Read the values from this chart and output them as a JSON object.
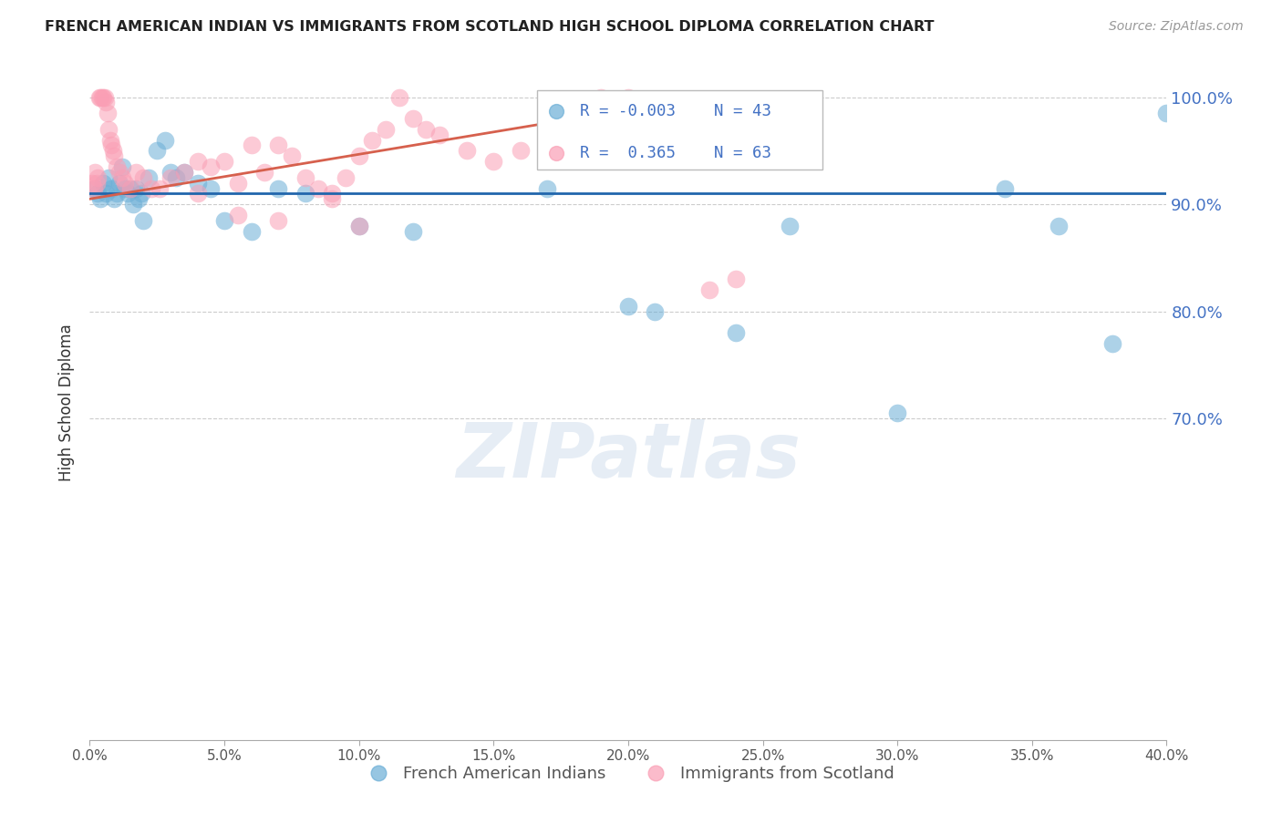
{
  "title": "FRENCH AMERICAN INDIAN VS IMMIGRANTS FROM SCOTLAND HIGH SCHOOL DIPLOMA CORRELATION CHART",
  "source": "Source: ZipAtlas.com",
  "ylabel": "High School Diploma",
  "watermark": "ZIPatlas",
  "blue_label": "French American Indians",
  "pink_label": "Immigrants from Scotland",
  "blue_R": "-0.003",
  "blue_N": "43",
  "pink_R": "0.365",
  "pink_N": "63",
  "xlim": [
    0.0,
    40.0
  ],
  "ylim": [
    40.0,
    103.0
  ],
  "yticks": [
    70.0,
    80.0,
    90.0,
    100.0
  ],
  "xticks": [
    0.0,
    5.0,
    10.0,
    15.0,
    20.0,
    25.0,
    30.0,
    35.0,
    40.0
  ],
  "blue_hline_y": 91.0,
  "blue_color": "#6baed6",
  "pink_color": "#fa9fb5",
  "blue_line_color": "#2166ac",
  "pink_line_color": "#d6604d",
  "blue_scatter_x": [
    0.2,
    0.3,
    0.4,
    0.5,
    0.6,
    0.7,
    0.8,
    0.9,
    1.0,
    1.1,
    1.2,
    1.3,
    1.4,
    1.5,
    1.6,
    1.7,
    1.8,
    1.9,
    2.0,
    2.2,
    2.5,
    2.8,
    3.0,
    3.2,
    3.5,
    4.0,
    4.5,
    5.0,
    6.0,
    7.0,
    8.0,
    10.0,
    12.0,
    17.0,
    20.0,
    21.0,
    24.0,
    26.0,
    30.0,
    34.0,
    36.0,
    38.0,
    40.0
  ],
  "blue_scatter_y": [
    91.5,
    91.0,
    90.5,
    92.0,
    91.0,
    92.5,
    91.5,
    90.5,
    91.0,
    92.0,
    93.5,
    91.5,
    91.0,
    91.5,
    90.0,
    91.5,
    90.5,
    91.0,
    88.5,
    92.5,
    95.0,
    96.0,
    93.0,
    92.5,
    93.0,
    92.0,
    91.5,
    88.5,
    87.5,
    91.5,
    91.0,
    88.0,
    87.5,
    91.5,
    80.5,
    80.0,
    78.0,
    88.0,
    70.5,
    91.5,
    88.0,
    77.0,
    98.5
  ],
  "pink_scatter_x": [
    0.1,
    0.15,
    0.2,
    0.25,
    0.3,
    0.35,
    0.4,
    0.45,
    0.5,
    0.55,
    0.6,
    0.65,
    0.7,
    0.75,
    0.8,
    0.85,
    0.9,
    1.0,
    1.1,
    1.2,
    1.3,
    1.5,
    1.7,
    2.0,
    2.3,
    2.6,
    3.0,
    3.5,
    4.0,
    4.5,
    5.0,
    5.5,
    6.0,
    6.5,
    7.0,
    7.5,
    8.0,
    8.5,
    9.0,
    9.5,
    10.0,
    10.5,
    11.0,
    11.5,
    12.0,
    12.5,
    13.0,
    14.0,
    15.0,
    16.0,
    17.0,
    18.0,
    19.0,
    20.0,
    21.0,
    22.0,
    23.0,
    24.0,
    4.0,
    5.5,
    7.0,
    9.0,
    10.0
  ],
  "pink_scatter_y": [
    92.0,
    91.5,
    93.0,
    92.0,
    92.5,
    100.0,
    100.0,
    100.0,
    100.0,
    100.0,
    99.5,
    98.5,
    97.0,
    96.0,
    95.5,
    95.0,
    94.5,
    93.5,
    93.0,
    92.5,
    92.0,
    91.5,
    93.0,
    92.5,
    91.5,
    91.5,
    92.5,
    93.0,
    94.0,
    93.5,
    94.0,
    92.0,
    95.5,
    93.0,
    95.5,
    94.5,
    92.5,
    91.5,
    91.0,
    92.5,
    94.5,
    96.0,
    97.0,
    100.0,
    98.0,
    97.0,
    96.5,
    95.0,
    94.0,
    95.0,
    98.5,
    99.0,
    100.0,
    100.0,
    97.0,
    98.5,
    82.0,
    83.0,
    91.0,
    89.0,
    88.5,
    90.5,
    88.0
  ],
  "pink_line_x0": 0.0,
  "pink_line_x1": 24.0,
  "pink_line_y0": 90.5,
  "pink_line_y1": 100.5
}
